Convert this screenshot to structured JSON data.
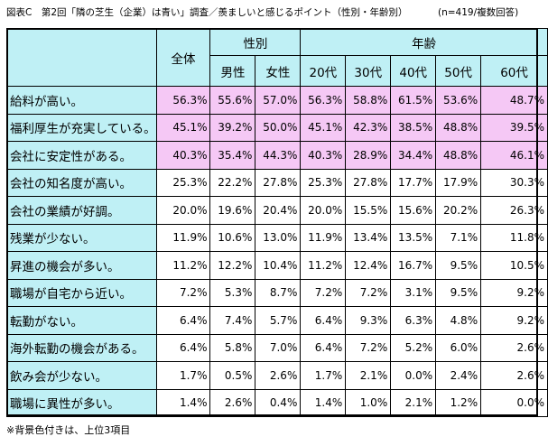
{
  "title": "図表C　第2回「隣の芝生（企業）は青い」調査／羨ましいと感じるポイント（性別・年齢別）",
  "note": "(n=419/複数回答)",
  "footnote": "※背景色付きは、上位3項目",
  "highlight_color": "#f5c8f5",
  "header_color": "#bff0f5",
  "chart_data": {
    "type": "table",
    "column_groups": {
      "overall": "全体",
      "gender": "性別",
      "age": "年齢"
    },
    "columns": [
      "全体",
      "男性",
      "女性",
      "20代",
      "30代",
      "40代",
      "50代",
      "60代"
    ],
    "rows": [
      {
        "label": "給料が高い。",
        "top3": true,
        "values": [
          "56.3%",
          "55.6%",
          "57.0%",
          "56.3%",
          "58.8%",
          "61.5%",
          "53.6%",
          "48.7%"
        ]
      },
      {
        "label": "福利厚生が充実している。",
        "top3": true,
        "values": [
          "45.1%",
          "39.2%",
          "50.0%",
          "45.1%",
          "42.3%",
          "38.5%",
          "48.8%",
          "39.5%"
        ]
      },
      {
        "label": "会社に安定性がある。",
        "top3": true,
        "values": [
          "40.3%",
          "35.4%",
          "44.3%",
          "40.3%",
          "28.9%",
          "34.4%",
          "48.8%",
          "46.1%"
        ]
      },
      {
        "label": "会社の知名度が高い。",
        "top3": false,
        "values": [
          "25.3%",
          "22.2%",
          "27.8%",
          "25.3%",
          "27.8%",
          "17.7%",
          "17.9%",
          "30.3%"
        ]
      },
      {
        "label": "会社の業績が好調。",
        "top3": false,
        "values": [
          "20.0%",
          "19.6%",
          "20.4%",
          "20.0%",
          "15.5%",
          "15.6%",
          "20.2%",
          "26.3%"
        ]
      },
      {
        "label": "残業が少ない。",
        "top3": false,
        "values": [
          "11.9%",
          "10.6%",
          "13.0%",
          "11.9%",
          "13.4%",
          "13.5%",
          "7.1%",
          "11.8%"
        ]
      },
      {
        "label": "昇進の機会が多い。",
        "top3": false,
        "values": [
          "11.2%",
          "12.2%",
          "10.4%",
          "11.2%",
          "12.4%",
          "16.7%",
          "9.5%",
          "10.5%"
        ]
      },
      {
        "label": "職場が自宅から近い。",
        "top3": false,
        "values": [
          "7.2%",
          "5.3%",
          "8.7%",
          "7.2%",
          "7.2%",
          "3.1%",
          "9.5%",
          "9.2%"
        ]
      },
      {
        "label": "転勤がない。",
        "top3": false,
        "values": [
          "6.4%",
          "7.4%",
          "5.7%",
          "6.4%",
          "9.3%",
          "6.3%",
          "4.8%",
          "9.2%"
        ]
      },
      {
        "label": "海外転勤の機会がある。",
        "top3": false,
        "values": [
          "6.4%",
          "5.8%",
          "7.0%",
          "6.4%",
          "7.2%",
          "5.2%",
          "6.0%",
          "2.6%"
        ]
      },
      {
        "label": "飲み会が少ない。",
        "top3": false,
        "values": [
          "1.7%",
          "0.5%",
          "2.6%",
          "1.7%",
          "2.1%",
          "0.0%",
          "2.4%",
          "2.6%"
        ]
      },
      {
        "label": "職場に異性が多い。",
        "top3": false,
        "values": [
          "1.4%",
          "2.6%",
          "0.4%",
          "1.4%",
          "1.0%",
          "2.1%",
          "1.2%",
          "0.0%"
        ]
      }
    ]
  }
}
